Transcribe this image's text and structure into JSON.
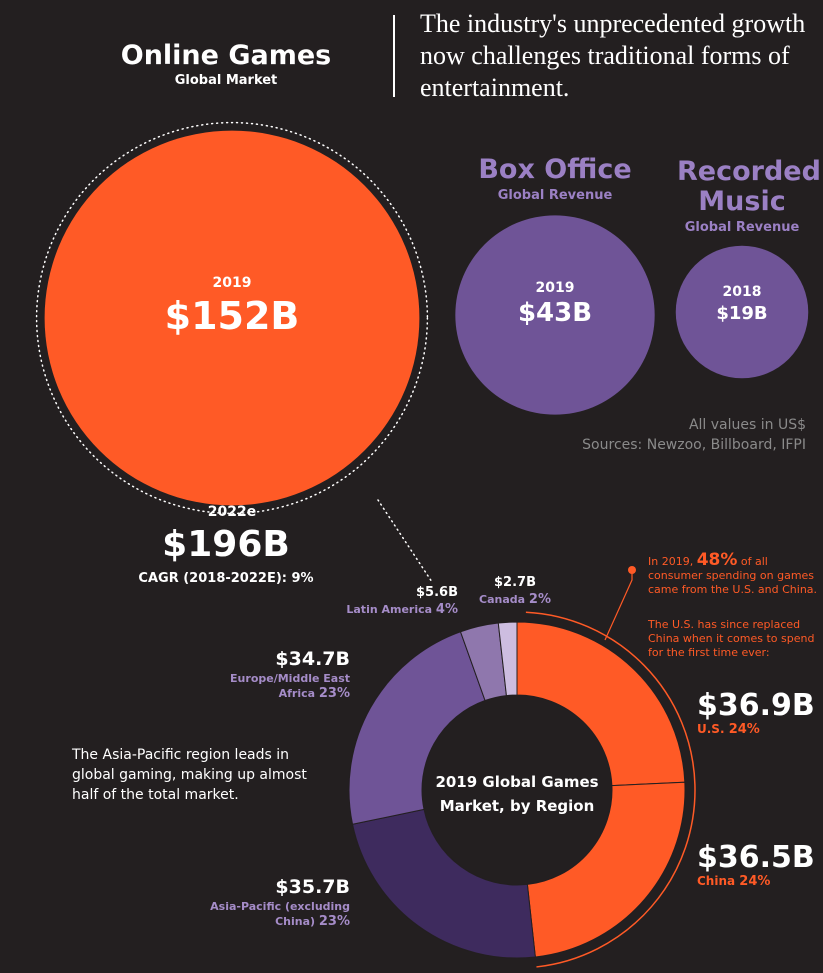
{
  "headline": "The industry's unprecedented growth now challenges traditional forms of entertainment.",
  "bubbles": [
    {
      "title": "Online Games",
      "subtitle": "Global Market",
      "year": "2019",
      "value": 152,
      "value_label": "$152B",
      "color": "#ff5a26"
    },
    {
      "title": "Box Office",
      "subtitle": "Global Revenue",
      "year": "2019",
      "value": 43,
      "value_label": "$43B",
      "color": "#6f5497"
    },
    {
      "title": "Recorded Music",
      "subtitle": "Global Revenue",
      "year": "2018",
      "value": 19,
      "value_label": "$19B",
      "color": "#6f5497"
    }
  ],
  "forecast": {
    "year": "2022e",
    "value_label": "$196B",
    "cagr": "CAGR (2018-2022E): 9%"
  },
  "notes": [
    "All values in US$",
    "Sources: Newzoo, Billboard, IFPI"
  ],
  "chart_data": {
    "type": "donut",
    "title": "2019 Global Games Market, by Region",
    "categories": [
      "U.S.",
      "China",
      "Asia-Pacific (excluding China)",
      "Europe/Middle East Africa",
      "Latin America",
      "Canada"
    ],
    "values": [
      36.9,
      36.5,
      35.7,
      34.7,
      5.6,
      2.7
    ],
    "value_labels": [
      "$36.9B",
      "$36.5B",
      "$35.7B",
      "$34.7B",
      "$5.6B",
      "$2.7B"
    ],
    "shares": [
      "24%",
      "24%",
      "23%",
      "23%",
      "4%",
      "2%"
    ],
    "colors": [
      "#ff5a26",
      "#ff5a26",
      "#3e2b5e",
      "#6f5497",
      "#8f77ad",
      "#cdbde0"
    ]
  },
  "annotation": {
    "before": "In 2019,",
    "highlight": "48%",
    "after": "of all consumer spending on games came from the U.S. and China.",
    "note": "The U.S. has since replaced China when it comes to spend for the first time ever:"
  },
  "region_note": "The Asia-Pacific region leads in global gaming, making up almost half of the total market."
}
